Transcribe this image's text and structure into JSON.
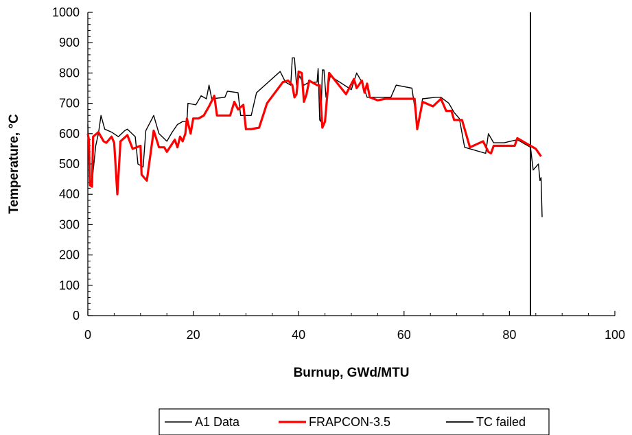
{
  "chart_data": {
    "type": "line",
    "xlabel": "Burnup, GWd/MTU",
    "ylabel": "Temperature,  °C",
    "xlim": [
      0,
      100
    ],
    "ylim": [
      0,
      1000
    ],
    "x_ticks": [
      0,
      20,
      40,
      60,
      80,
      100
    ],
    "y_ticks": [
      0,
      100,
      200,
      300,
      400,
      500,
      600,
      700,
      800,
      900,
      1000
    ],
    "x_tick_labels": [
      "0",
      "20",
      "40",
      "60",
      "80",
      "100"
    ],
    "y_tick_labels": [
      "0",
      "100",
      "200",
      "300",
      "400",
      "500",
      "600",
      "700",
      "800",
      "900",
      "1000"
    ],
    "grid": false,
    "legend_position": "bottom-center",
    "series": [
      {
        "name": "A1 Data",
        "color": "#000000",
        "points": [
          [
            0.0,
            630
          ],
          [
            0.3,
            450
          ],
          [
            0.8,
            440
          ],
          [
            1.5,
            560
          ],
          [
            2.0,
            600
          ],
          [
            2.5,
            660
          ],
          [
            3.2,
            615
          ],
          [
            4.5,
            605
          ],
          [
            5.8,
            590
          ],
          [
            7.0,
            610
          ],
          [
            7.5,
            615
          ],
          [
            9.0,
            590
          ],
          [
            9.5,
            500
          ],
          [
            10.5,
            490
          ],
          [
            11.0,
            610
          ],
          [
            12.5,
            660
          ],
          [
            13.5,
            600
          ],
          [
            15.0,
            575
          ],
          [
            16.0,
            605
          ],
          [
            17.0,
            630
          ],
          [
            18.0,
            640
          ],
          [
            18.8,
            640
          ],
          [
            19.0,
            700
          ],
          [
            20.5,
            695
          ],
          [
            21.5,
            725
          ],
          [
            22.5,
            715
          ],
          [
            23.0,
            760
          ],
          [
            23.5,
            715
          ],
          [
            26.0,
            720
          ],
          [
            26.5,
            740
          ],
          [
            28.5,
            735
          ],
          [
            29.0,
            660
          ],
          [
            31.0,
            660
          ],
          [
            32.0,
            735
          ],
          [
            36.5,
            805
          ],
          [
            37.5,
            770
          ],
          [
            38.5,
            760
          ],
          [
            38.8,
            850
          ],
          [
            39.2,
            850
          ],
          [
            39.6,
            760
          ],
          [
            40.2,
            790
          ],
          [
            41.0,
            760
          ],
          [
            42.0,
            770
          ],
          [
            43.5,
            770
          ],
          [
            43.7,
            815
          ],
          [
            44.0,
            645
          ],
          [
            44.2,
            640
          ],
          [
            44.5,
            810
          ],
          [
            44.8,
            810
          ],
          [
            45.2,
            720
          ],
          [
            46.0,
            790
          ],
          [
            50.0,
            745
          ],
          [
            51.0,
            800
          ],
          [
            52.0,
            770
          ],
          [
            53.0,
            720
          ],
          [
            55.5,
            720
          ],
          [
            57.5,
            720
          ],
          [
            58.5,
            760
          ],
          [
            61.5,
            750
          ],
          [
            62.5,
            630
          ],
          [
            63.0,
            650
          ],
          [
            63.5,
            715
          ],
          [
            66.0,
            720
          ],
          [
            67.0,
            720
          ],
          [
            68.5,
            700
          ],
          [
            69.5,
            670
          ],
          [
            70.5,
            650
          ],
          [
            71.5,
            555
          ],
          [
            75.5,
            535
          ],
          [
            76.0,
            600
          ],
          [
            77.0,
            570
          ],
          [
            79.0,
            570
          ],
          [
            81.5,
            580
          ],
          [
            84.0,
            555
          ],
          [
            84.5,
            480
          ],
          [
            85.5,
            500
          ],
          [
            85.8,
            445
          ],
          [
            86.0,
            455
          ],
          [
            86.2,
            325
          ]
        ]
      },
      {
        "name": "FRAPCON-3.5",
        "color": "#ff0000",
        "points": [
          [
            0.0,
            600
          ],
          [
            0.2,
            580
          ],
          [
            0.4,
            430
          ],
          [
            0.8,
            425
          ],
          [
            1.0,
            590
          ],
          [
            2.0,
            605
          ],
          [
            3.0,
            575
          ],
          [
            3.5,
            570
          ],
          [
            4.5,
            590
          ],
          [
            5.0,
            570
          ],
          [
            5.6,
            400
          ],
          [
            6.2,
            575
          ],
          [
            7.5,
            595
          ],
          [
            8.5,
            550
          ],
          [
            10.0,
            560
          ],
          [
            10.2,
            465
          ],
          [
            11.2,
            445
          ],
          [
            12.5,
            610
          ],
          [
            13.5,
            555
          ],
          [
            14.5,
            555
          ],
          [
            15.0,
            540
          ],
          [
            16.5,
            580
          ],
          [
            17.0,
            555
          ],
          [
            17.5,
            590
          ],
          [
            18.0,
            575
          ],
          [
            18.5,
            600
          ],
          [
            18.8,
            650
          ],
          [
            19.5,
            600
          ],
          [
            20.0,
            650
          ],
          [
            21.0,
            650
          ],
          [
            22.0,
            660
          ],
          [
            23.0,
            690
          ],
          [
            24.0,
            725
          ],
          [
            24.5,
            660
          ],
          [
            27.0,
            660
          ],
          [
            27.8,
            705
          ],
          [
            28.5,
            680
          ],
          [
            29.5,
            695
          ],
          [
            30.0,
            615
          ],
          [
            31.0,
            615
          ],
          [
            32.5,
            620
          ],
          [
            34.0,
            700
          ],
          [
            37.0,
            770
          ],
          [
            38.0,
            775
          ],
          [
            38.8,
            760
          ],
          [
            39.2,
            720
          ],
          [
            39.6,
            730
          ],
          [
            40.0,
            805
          ],
          [
            40.6,
            800
          ],
          [
            41.0,
            705
          ],
          [
            41.5,
            730
          ],
          [
            42.0,
            775
          ],
          [
            42.5,
            770
          ],
          [
            43.5,
            760
          ],
          [
            44.0,
            760
          ],
          [
            44.5,
            620
          ],
          [
            45.0,
            640
          ],
          [
            45.8,
            800
          ],
          [
            49.0,
            730
          ],
          [
            50.5,
            780
          ],
          [
            51.0,
            750
          ],
          [
            52.0,
            775
          ],
          [
            52.5,
            735
          ],
          [
            53.0,
            765
          ],
          [
            53.5,
            720
          ],
          [
            55.0,
            710
          ],
          [
            56.5,
            715
          ],
          [
            62.0,
            715
          ],
          [
            62.5,
            615
          ],
          [
            63.5,
            705
          ],
          [
            65.5,
            690
          ],
          [
            67.0,
            715
          ],
          [
            68.0,
            675
          ],
          [
            69.0,
            675
          ],
          [
            69.5,
            645
          ],
          [
            71.0,
            645
          ],
          [
            72.5,
            555
          ],
          [
            75.0,
            575
          ],
          [
            76.0,
            540
          ],
          [
            76.5,
            535
          ],
          [
            77.0,
            560
          ],
          [
            80.0,
            560
          ],
          [
            81.0,
            560
          ],
          [
            81.5,
            585
          ],
          [
            85.0,
            550
          ],
          [
            86.0,
            525
          ]
        ]
      },
      {
        "name": "TC failed",
        "color": "#000000",
        "points": [
          [
            84.0,
            0
          ],
          [
            84.0,
            1000
          ]
        ]
      }
    ]
  }
}
